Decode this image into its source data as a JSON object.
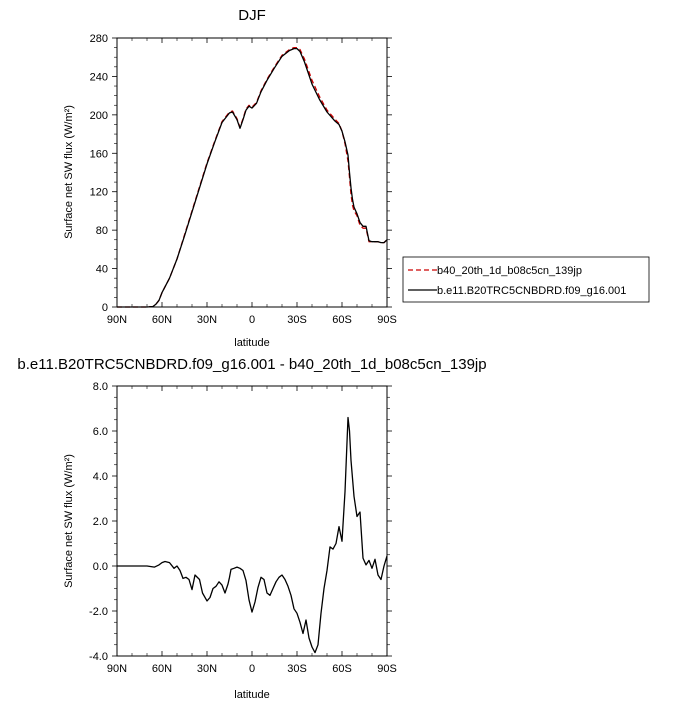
{
  "chart_data": [
    {
      "type": "line",
      "title": "DJF",
      "xlabel": "latitude",
      "ylabel": "Surface net SW flux (W/m²)",
      "xlim": [
        90,
        -90
      ],
      "ylim": [
        0,
        280
      ],
      "x_ticks": [
        90,
        60,
        30,
        0,
        -30,
        -60,
        -90
      ],
      "x_tick_labels": [
        "90N",
        "60N",
        "30N",
        "0",
        "30S",
        "60S",
        "90S"
      ],
      "y_ticks": [
        0,
        40,
        80,
        120,
        160,
        200,
        240,
        280
      ],
      "y_tick_labels": [
        "0",
        "40",
        "80",
        "120",
        "160",
        "200",
        "240",
        "280"
      ],
      "legend_position": "right",
      "series": [
        {
          "name": "b40_20th_1d_b08c5cn_139jp",
          "color": "#cc0000",
          "dash": "dashed",
          "x": [
            90,
            80,
            70,
            66,
            64,
            62,
            60,
            55,
            50,
            45,
            40,
            35,
            30,
            25,
            20,
            15,
            13,
            10,
            8,
            6,
            4,
            2,
            0,
            -3,
            -6,
            -10,
            -15,
            -20,
            -25,
            -28,
            -30,
            -32,
            -35,
            -40,
            -45,
            -50,
            -55,
            -58,
            -60,
            -62,
            -64,
            -65,
            -66,
            -67,
            -68,
            -70,
            -72,
            -74,
            -76,
            -78,
            -80,
            -82,
            -84,
            -86,
            -88,
            -90
          ],
          "y": [
            0,
            0,
            0,
            0.5,
            3,
            7,
            15,
            30,
            50,
            75,
            100,
            125,
            150,
            172,
            193,
            203,
            204,
            196,
            187,
            196,
            206,
            210,
            208,
            213,
            225,
            237,
            250,
            262,
            268,
            270,
            270,
            268,
            258,
            236,
            219,
            205,
            196,
            191,
            183,
            170,
            152,
            135,
            117,
            106,
            100,
            95,
            85,
            82,
            82,
            68,
            68,
            68,
            68,
            67,
            67,
            70
          ]
        },
        {
          "name": "b.e11.B20TRC5CNBDRD.f09_g16.001",
          "color": "#000000",
          "dash": "solid",
          "x": [
            90,
            80,
            70,
            66,
            64,
            62,
            60,
            55,
            50,
            45,
            40,
            35,
            30,
            25,
            20,
            15,
            13,
            10,
            8,
            6,
            4,
            2,
            0,
            -3,
            -6,
            -10,
            -15,
            -20,
            -25,
            -28,
            -30,
            -32,
            -35,
            -40,
            -45,
            -50,
            -55,
            -58,
            -60,
            -62,
            -64,
            -65,
            -66,
            -67,
            -68,
            -70,
            -72,
            -74,
            -76,
            -78,
            -80,
            -82,
            -84,
            -86,
            -88,
            -90
          ],
          "y": [
            0,
            0,
            0,
            0.5,
            3,
            7,
            15,
            30,
            50,
            74,
            99,
            124,
            149,
            171,
            192,
            202,
            203,
            195,
            186,
            195,
            205,
            209,
            207,
            212,
            224,
            236,
            249,
            261,
            267,
            269,
            269,
            266,
            255,
            232,
            216,
            203,
            194,
            190,
            183,
            172,
            158,
            140,
            124,
            112,
            104,
            97,
            88,
            84,
            84,
            69,
            68,
            68,
            68,
            67,
            67,
            70
          ]
        }
      ]
    },
    {
      "type": "line",
      "title": "b.e11.B20TRC5CNBDRD.f09_g16.001 - b40_20th_1d_b08c5cn_139jp",
      "xlabel": "latitude",
      "ylabel": "Surface net SW flux (W/m²)",
      "xlim": [
        90,
        -90
      ],
      "ylim": [
        -4,
        8
      ],
      "x_ticks": [
        90,
        60,
        30,
        0,
        -30,
        -60,
        -90
      ],
      "x_tick_labels": [
        "90N",
        "60N",
        "30N",
        "0",
        "30S",
        "60S",
        "90S"
      ],
      "y_ticks": [
        -4,
        -2,
        0,
        2,
        4,
        6,
        8
      ],
      "y_tick_labels": [
        "-4.0",
        "-2.0",
        "0.0",
        "2.0",
        "4.0",
        "6.0",
        "8.0"
      ],
      "series": [
        {
          "color": "#000000",
          "dash": "solid",
          "x": [
            90,
            80,
            70,
            65,
            62,
            60,
            58,
            55,
            52,
            50,
            48,
            46,
            44,
            42,
            40,
            38,
            35,
            33,
            30,
            28,
            26,
            24,
            22,
            20,
            18,
            16,
            15,
            14,
            12,
            10,
            8,
            6,
            4,
            2,
            0,
            -2,
            -4,
            -6,
            -8,
            -10,
            -12,
            -14,
            -16,
            -18,
            -20,
            -22,
            -24,
            -26,
            -28,
            -30,
            -32,
            -34,
            -36,
            -38,
            -40,
            -42,
            -44,
            -46,
            -48,
            -50,
            -52,
            -54,
            -56,
            -58,
            -60,
            -62,
            -64,
            -65,
            -66,
            -68,
            -70,
            -72,
            -74,
            -76,
            -78,
            -80,
            -82,
            -84,
            -86,
            -88,
            -90
          ],
          "y": [
            0,
            0,
            0,
            -0.05,
            0.05,
            0.15,
            0.2,
            0.15,
            -0.1,
            0,
            -0.2,
            -0.55,
            -0.5,
            -0.6,
            -1.05,
            -0.4,
            -0.6,
            -1.2,
            -1.55,
            -1.4,
            -1.0,
            -0.9,
            -0.7,
            -0.85,
            -1.2,
            -0.8,
            -0.5,
            -0.15,
            -0.1,
            -0.05,
            -0.1,
            -0.2,
            -0.65,
            -1.5,
            -2.05,
            -1.6,
            -0.95,
            -0.5,
            -0.6,
            -1.2,
            -1.3,
            -1.0,
            -0.7,
            -0.5,
            -0.4,
            -0.6,
            -0.9,
            -1.3,
            -1.9,
            -2.1,
            -2.5,
            -3.0,
            -2.4,
            -3.2,
            -3.6,
            -3.85,
            -3.5,
            -2.1,
            -1.0,
            -0.2,
            0.85,
            0.75,
            1.0,
            1.75,
            1.1,
            3.3,
            6.6,
            6.0,
            4.7,
            3.1,
            2.2,
            2.4,
            0.35,
            0.05,
            0.25,
            -0.1,
            0.3,
            -0.4,
            -0.6,
            0.0,
            0.45
          ]
        }
      ]
    }
  ]
}
